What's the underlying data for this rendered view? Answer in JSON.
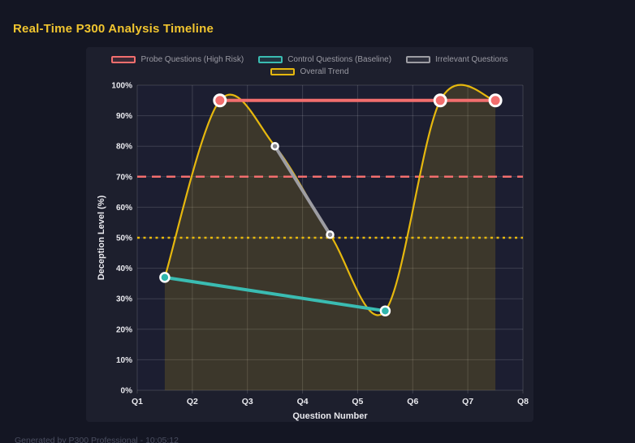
{
  "page": {
    "title": "Real-Time P300 Analysis Timeline",
    "footer": "Generated by P300 Professional - 10:05:12"
  },
  "colors": {
    "page_bg": "#141623",
    "panel_bg": "#1d1f2d",
    "plot_bg": "#1c1e31",
    "grid": "rgba(255,255,255,0.15)",
    "axis_text": "#e9e9ee",
    "legend_text": "#9a9aa3",
    "title": "#f1c52f",
    "footer": "#4a4e60"
  },
  "chart_data": {
    "type": "line",
    "title": "Real-Time P300 Analysis Timeline",
    "xlabel": "Question Number",
    "ylabel": "Deception Level (%)",
    "x_ticks": [
      "Q1",
      "Q2",
      "Q3",
      "Q4",
      "Q5",
      "Q6",
      "Q7",
      "Q8"
    ],
    "x_range": [
      1,
      8
    ],
    "ylim": [
      0,
      100
    ],
    "y_tick_step": 10,
    "y_tick_suffix": "%",
    "grid": true,
    "legend_position": "top-center",
    "series": [
      {
        "name": "Probe Questions (High Risk)",
        "color": "#f26e6e",
        "x": [
          2.5,
          6.5,
          7.5
        ],
        "values": [
          95,
          95,
          95
        ],
        "line_width": 4,
        "marker_radius": 7,
        "marker_stroke": 3,
        "marker_fill": "#f26e6e"
      },
      {
        "name": "Control Questions (Baseline)",
        "color": "#3abcb2",
        "x": [
          1.5,
          5.5
        ],
        "values": [
          37,
          26
        ],
        "line_width": 4,
        "marker_radius": 5.5,
        "marker_stroke": 2.5,
        "marker_fill": "#2fb5ac"
      },
      {
        "name": "Irrelevant Questions",
        "color": "#9d9da3",
        "x": [
          3.5,
          4.5
        ],
        "values": [
          80,
          51
        ],
        "line_width": 4,
        "marker_radius": 4,
        "marker_stroke": 2.5,
        "marker_fill": "#85858c"
      },
      {
        "name": "Overall Trend",
        "color": "#e6b80e",
        "style": "spline-area",
        "x": [
          1.5,
          2.5,
          3.5,
          4.5,
          5.5,
          6.5,
          7.5
        ],
        "values": [
          37,
          95,
          80,
          51,
          26,
          95,
          95
        ],
        "line_width": 2.2,
        "fill_opacity": 0.16
      }
    ],
    "thresholds": [
      {
        "value": 70,
        "color": "#f26e6e",
        "style": "dashed"
      },
      {
        "value": 50,
        "color": "#e6b80e",
        "style": "dotted"
      }
    ]
  }
}
